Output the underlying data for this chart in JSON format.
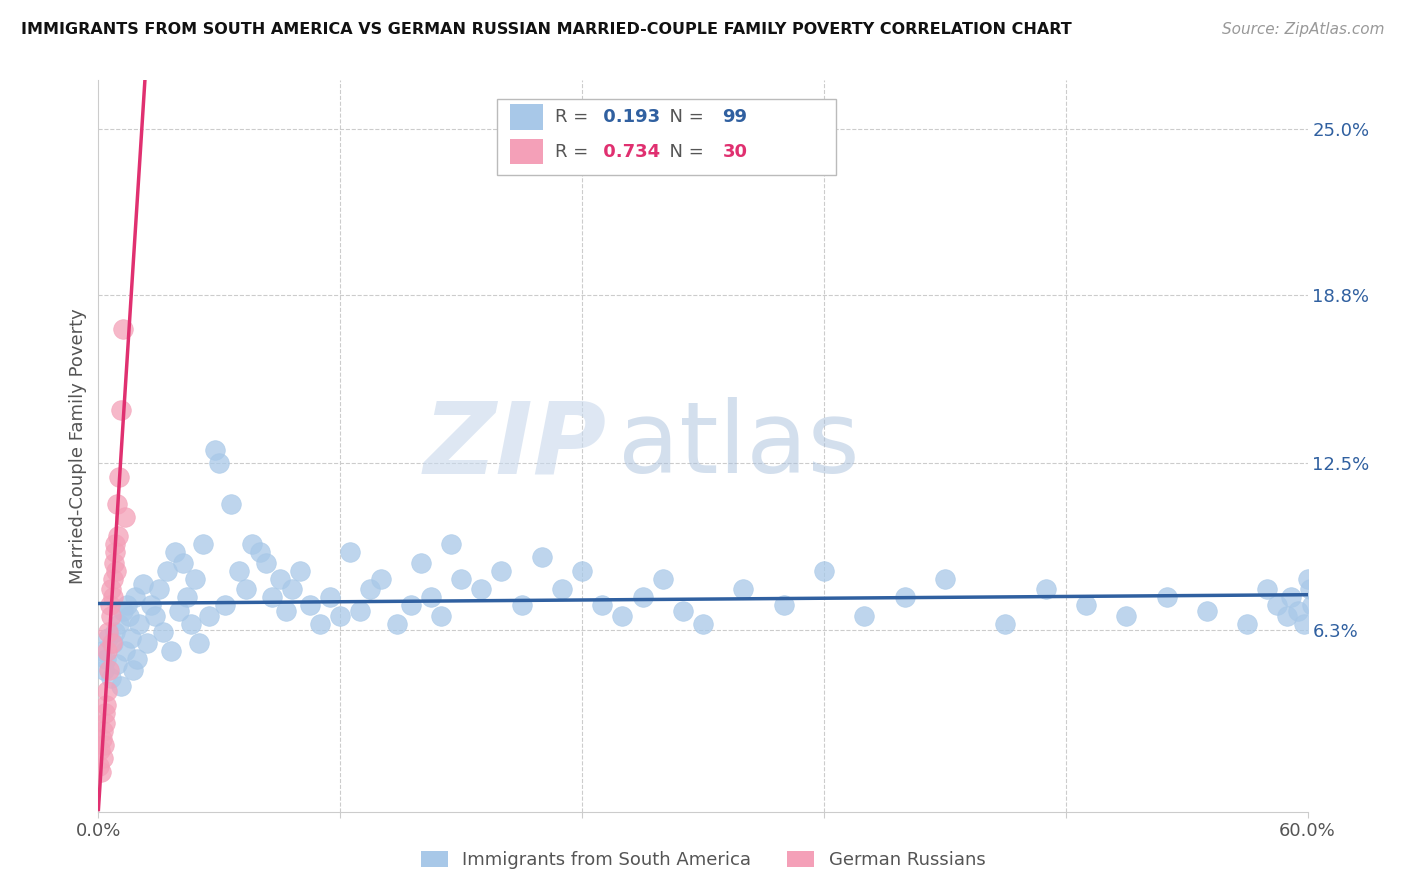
{
  "title": "IMMIGRANTS FROM SOUTH AMERICA VS GERMAN RUSSIAN MARRIED-COUPLE FAMILY POVERTY CORRELATION CHART",
  "source": "Source: ZipAtlas.com",
  "ylabel": "Married-Couple Family Poverty",
  "legend_label1": "Immigrants from South America",
  "legend_label2": "German Russians",
  "R1": 0.193,
  "N1": 99,
  "R2": 0.734,
  "N2": 30,
  "color1": "#a8c8e8",
  "color2": "#f4a0b8",
  "line_color1": "#3060a0",
  "line_color2": "#e03070",
  "xmin": 0.0,
  "xmax": 0.6,
  "ymin": -0.005,
  "ymax": 0.268,
  "yticks": [
    0.063,
    0.125,
    0.188,
    0.25
  ],
  "ytick_labels": [
    "6.3%",
    "12.5%",
    "18.8%",
    "25.0%"
  ],
  "xticks": [
    0.0,
    0.12,
    0.24,
    0.36,
    0.48,
    0.6
  ],
  "xtick_labels": [
    "0.0%",
    "",
    "",
    "",
    "",
    "60.0%"
  ],
  "watermark_zip": "ZIP",
  "watermark_atlas": "atlas",
  "blue_x": [
    0.002,
    0.003,
    0.004,
    0.005,
    0.006,
    0.007,
    0.008,
    0.009,
    0.01,
    0.011,
    0.012,
    0.013,
    0.014,
    0.015,
    0.016,
    0.017,
    0.018,
    0.019,
    0.02,
    0.022,
    0.024,
    0.026,
    0.028,
    0.03,
    0.032,
    0.034,
    0.036,
    0.038,
    0.04,
    0.042,
    0.044,
    0.046,
    0.048,
    0.05,
    0.052,
    0.055,
    0.058,
    0.06,
    0.063,
    0.066,
    0.07,
    0.073,
    0.076,
    0.08,
    0.083,
    0.086,
    0.09,
    0.093,
    0.096,
    0.1,
    0.105,
    0.11,
    0.115,
    0.12,
    0.125,
    0.13,
    0.135,
    0.14,
    0.148,
    0.155,
    0.16,
    0.165,
    0.17,
    0.175,
    0.18,
    0.19,
    0.2,
    0.21,
    0.22,
    0.23,
    0.24,
    0.25,
    0.26,
    0.27,
    0.28,
    0.29,
    0.3,
    0.32,
    0.34,
    0.36,
    0.38,
    0.4,
    0.42,
    0.45,
    0.47,
    0.49,
    0.51,
    0.53,
    0.55,
    0.57,
    0.58,
    0.585,
    0.59,
    0.592,
    0.595,
    0.598,
    0.6,
    0.601,
    0.602
  ],
  "blue_y": [
    0.055,
    0.048,
    0.052,
    0.06,
    0.045,
    0.058,
    0.062,
    0.05,
    0.065,
    0.042,
    0.07,
    0.055,
    0.072,
    0.068,
    0.06,
    0.048,
    0.075,
    0.052,
    0.065,
    0.08,
    0.058,
    0.072,
    0.068,
    0.078,
    0.062,
    0.085,
    0.055,
    0.092,
    0.07,
    0.088,
    0.075,
    0.065,
    0.082,
    0.058,
    0.095,
    0.068,
    0.13,
    0.125,
    0.072,
    0.11,
    0.085,
    0.078,
    0.095,
    0.092,
    0.088,
    0.075,
    0.082,
    0.07,
    0.078,
    0.085,
    0.072,
    0.065,
    0.075,
    0.068,
    0.092,
    0.07,
    0.078,
    0.082,
    0.065,
    0.072,
    0.088,
    0.075,
    0.068,
    0.095,
    0.082,
    0.078,
    0.085,
    0.072,
    0.09,
    0.078,
    0.085,
    0.072,
    0.068,
    0.075,
    0.082,
    0.07,
    0.065,
    0.078,
    0.072,
    0.085,
    0.068,
    0.075,
    0.082,
    0.065,
    0.078,
    0.072,
    0.068,
    0.075,
    0.07,
    0.065,
    0.078,
    0.072,
    0.068,
    0.075,
    0.07,
    0.065,
    0.082,
    0.078,
    0.072
  ],
  "pink_x": [
    0.0005,
    0.001,
    0.0015,
    0.002,
    0.0022,
    0.0025,
    0.003,
    0.0032,
    0.0035,
    0.004,
    0.0042,
    0.0045,
    0.005,
    0.0052,
    0.0055,
    0.006,
    0.0062,
    0.0065,
    0.007,
    0.0072,
    0.0075,
    0.008,
    0.0082,
    0.0085,
    0.009,
    0.0095,
    0.01,
    0.011,
    0.012,
    0.013
  ],
  "pink_y": [
    0.012,
    0.018,
    0.01,
    0.022,
    0.015,
    0.025,
    0.02,
    0.032,
    0.028,
    0.035,
    0.04,
    0.055,
    0.062,
    0.048,
    0.072,
    0.068,
    0.078,
    0.058,
    0.082,
    0.075,
    0.088,
    0.095,
    0.092,
    0.085,
    0.11,
    0.098,
    0.12,
    0.145,
    0.175,
    0.105
  ]
}
